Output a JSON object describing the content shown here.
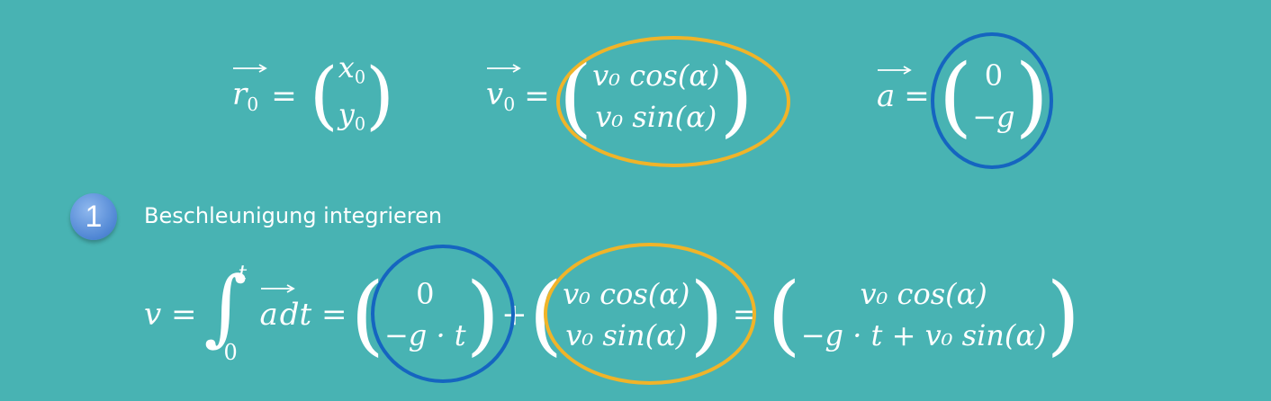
{
  "equations_top": {
    "r0": {
      "lhs": "r",
      "lhs_sub": "0",
      "eq": "=",
      "row1": "x",
      "row1_sub": "0",
      "row2": "y",
      "row2_sub": "0"
    },
    "v0": {
      "lhs": "v",
      "lhs_sub": "0",
      "eq": "=",
      "row1": "v₀ cos(α)",
      "row2": "v₀ sin(α)"
    },
    "a": {
      "lhs": "a",
      "eq": "=",
      "row1": "0",
      "row2": "−g"
    }
  },
  "step": {
    "number": "1",
    "label": "Beschleunigung integrieren"
  },
  "integral": {
    "lhs": "v =",
    "upper": "t",
    "lower": "0",
    "integrand": "a",
    "dt": "dt =",
    "m1_row1": "0",
    "m1_row2": "−g · t",
    "plus": "+",
    "m2_row1": "v₀ cos(α)",
    "m2_row2": "v₀ sin(α)",
    "eq": "=",
    "m3_row1": "v₀ cos(α)",
    "m3_row2": "−g · t + v₀ sin(α)"
  },
  "colors": {
    "background": "#48b3b3",
    "ring_yellow": "#f0b429",
    "ring_blue": "#1565c0",
    "badge": "#5b8fd8"
  }
}
